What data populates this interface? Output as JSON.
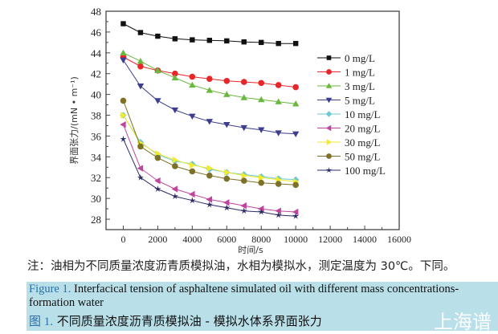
{
  "chart_data": {
    "type": "line",
    "xlabel": "时间/s",
    "ylabel": "界面张力/(mN • m⁻¹)",
    "xlim": [
      -1000,
      16000
    ],
    "ylim": [
      27,
      48
    ],
    "xticks": [
      0,
      2000,
      4000,
      6000,
      8000,
      10000,
      12000,
      14000,
      16000
    ],
    "yticks": [
      28,
      30,
      32,
      34,
      36,
      38,
      40,
      42,
      44,
      46,
      48
    ],
    "grid": false,
    "legend_placement": "right",
    "x": [
      0,
      1000,
      2000,
      3000,
      4000,
      5000,
      6000,
      7000,
      8000,
      9000,
      10000
    ],
    "series": [
      {
        "name": "0 mg/L",
        "marker": "square",
        "color": "#111111",
        "values": [
          46.8,
          45.95,
          45.6,
          45.35,
          45.25,
          45.2,
          45.15,
          45.05,
          45.0,
          44.9,
          44.9
        ]
      },
      {
        "name": "1 mg/L",
        "marker": "circle",
        "color": "#e8262a",
        "values": [
          43.6,
          42.7,
          42.3,
          42.0,
          41.7,
          41.5,
          41.3,
          41.2,
          41.1,
          40.9,
          40.7
        ]
      },
      {
        "name": "3 mg/L",
        "marker": "triangle-up",
        "color": "#6ab83e",
        "values": [
          44.0,
          43.2,
          42.3,
          41.6,
          40.9,
          40.4,
          40.0,
          39.7,
          39.5,
          39.3,
          39.1
        ]
      },
      {
        "name": "5 mg/L",
        "marker": "triangle-down",
        "color": "#3c3f8f",
        "values": [
          43.3,
          40.8,
          39.4,
          38.5,
          37.9,
          37.4,
          37.1,
          36.8,
          36.6,
          36.3,
          36.2
        ]
      },
      {
        "name": "10 mg/L",
        "marker": "diamond",
        "color": "#6cc9d3",
        "values": [
          38.0,
          35.4,
          34.2,
          33.6,
          33.3,
          32.8,
          32.5,
          32.3,
          32.1,
          31.9,
          31.8
        ]
      },
      {
        "name": "20 mg/L",
        "marker": "triangle-left",
        "color": "#c0449b",
        "values": [
          37.1,
          32.9,
          31.7,
          30.9,
          30.4,
          29.9,
          29.6,
          29.3,
          29.0,
          28.8,
          28.7
        ]
      },
      {
        "name": "30 mg/L",
        "marker": "triangle-right",
        "color": "#f2ea2a",
        "values": [
          38.0,
          35.3,
          34.3,
          33.7,
          33.2,
          32.9,
          32.5,
          32.2,
          32.0,
          31.8,
          31.6
        ]
      },
      {
        "name": "50 mg/L",
        "marker": "circle",
        "color": "#7d7127",
        "values": [
          39.4,
          35.0,
          33.9,
          33.1,
          32.6,
          32.2,
          31.9,
          31.7,
          31.5,
          31.4,
          31.3
        ]
      },
      {
        "name": "100 mg/L",
        "marker": "star",
        "color": "#2b2a66",
        "values": [
          35.7,
          32.0,
          30.9,
          30.2,
          29.8,
          29.4,
          29.1,
          28.8,
          28.7,
          28.4,
          28.3
        ]
      }
    ]
  },
  "note": "注：油相为不同质量浓度沥青质模拟油，水相为模拟水，测定温度为 30℃。下同。",
  "caption": {
    "en_label": "Figure 1.",
    "en_text": " Interfacical tension of asphaltene simulated oil with different mass concentrations-formation water",
    "zh_label": "图 1.",
    "zh_text": " 不同质量浓度沥青质模拟油 - 模拟水体系界面张力",
    "background": "#b9dfe9"
  },
  "watermark": "上海谱"
}
